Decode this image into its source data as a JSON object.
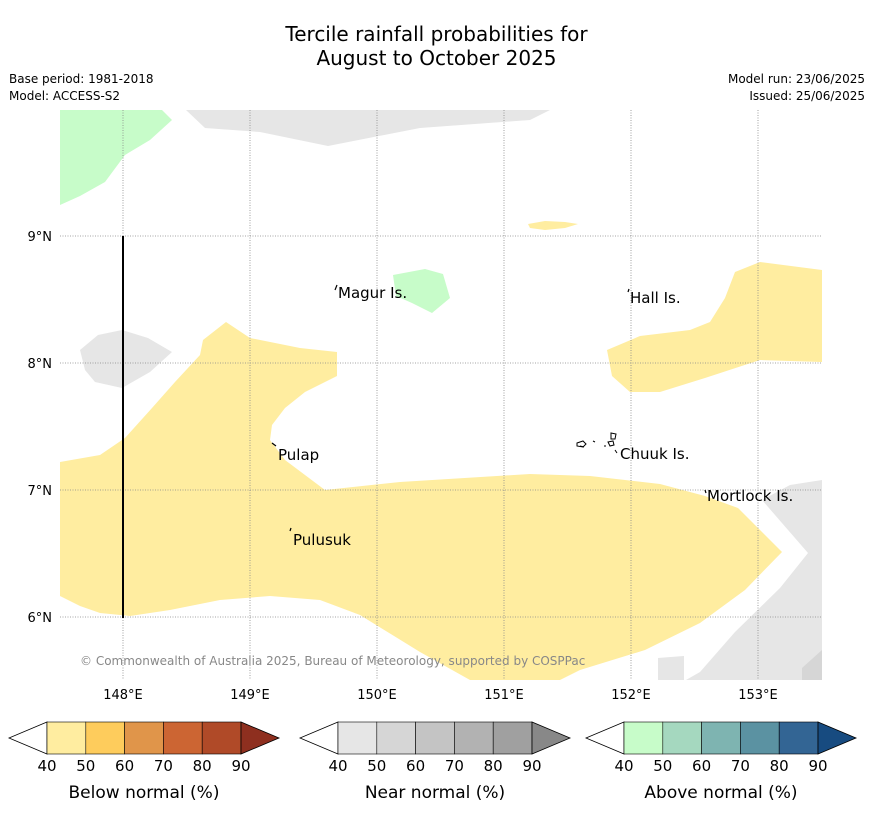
{
  "title_line1": "Tercile rainfall probabilities for",
  "title_line2": "August to October 2025",
  "base_period": "Base period: 1981-2018",
  "model": "Model: ACCESS-S2",
  "model_run": "Model run: 23/06/2025",
  "issued": "Issued: 25/06/2025",
  "map": {
    "lon_labels": [
      "148°E",
      "149°E",
      "150°E",
      "151°E",
      "152°E",
      "153°E"
    ],
    "lat_labels": [
      "9°N",
      "8°N",
      "7°N",
      "6°N"
    ],
    "places": [
      "Magur Is.",
      "Hall Is.",
      "Pulap",
      "Chuuk Is.",
      "Mortlock Is.",
      "Pulusuk"
    ],
    "copyright": "© Commonwealth of Australia 2025, Bureau of Meteorology, supported by COSPPac"
  },
  "colorbars": [
    {
      "label": "Below normal (%)",
      "ticks": [
        "40",
        "50",
        "60",
        "70",
        "80",
        "90"
      ],
      "colors": [
        "#ffeda0",
        "#fecc5c",
        "#e0954a",
        "#cc6533",
        "#b04a28",
        "#8e2f1f"
      ]
    },
    {
      "label": "Near normal (%)",
      "ticks": [
        "40",
        "50",
        "60",
        "70",
        "80",
        "90"
      ],
      "colors": [
        "#e6e6e6",
        "#d6d6d6",
        "#c4c4c4",
        "#b2b2b2",
        "#a0a0a0",
        "#888888"
      ]
    },
    {
      "label": "Above normal (%)",
      "ticks": [
        "40",
        "50",
        "60",
        "70",
        "80",
        "90"
      ],
      "colors": [
        "#c7fcc9",
        "#a5d8bf",
        "#7eb4b1",
        "#5b92a2",
        "#336594",
        "#174b80"
      ]
    }
  ]
}
